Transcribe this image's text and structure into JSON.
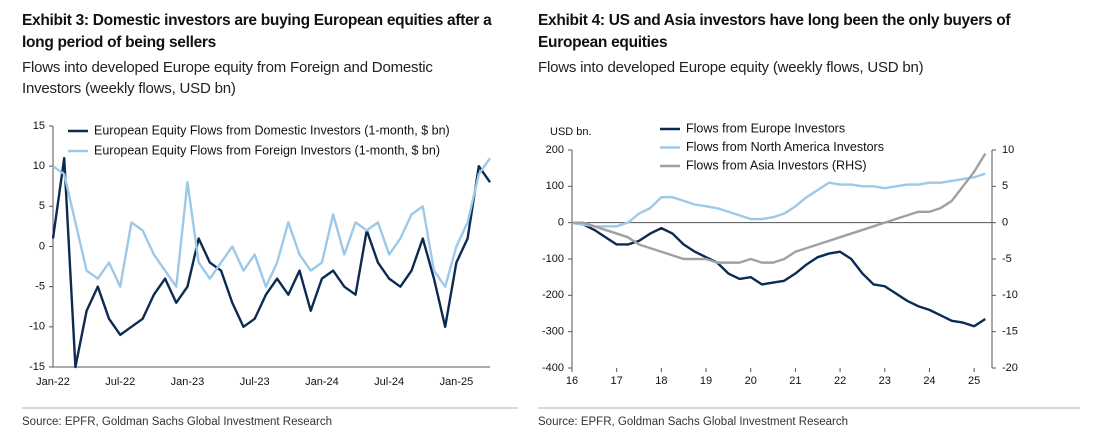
{
  "chart_data": [
    {
      "type": "line",
      "title": "Exhibit 3: Domestic investors are buying European equities after a long period of being sellers",
      "subtitle": "Flows into developed Europe equity from Foreign and Domestic Investors (weekly flows, USD bn)",
      "source": "Source: EPFR, Goldman Sachs Global Investment Research",
      "categories": [
        "Jan-22",
        null,
        null,
        null,
        null,
        null,
        "Jul-22",
        null,
        null,
        null,
        null,
        null,
        "Jan-23",
        null,
        null,
        null,
        null,
        null,
        "Jul-23",
        null,
        null,
        null,
        null,
        null,
        "Jan-24",
        null,
        null,
        null,
        null,
        null,
        "Jul-24",
        null,
        null,
        null,
        null,
        null,
        "Jan-25",
        null,
        null,
        null
      ],
      "series": [
        {
          "name": "European Equity Flows from Domestic Investors (1-month, $ bn)",
          "color": "#0b2b53",
          "values": [
            1,
            11,
            -15,
            -8,
            -5,
            -9,
            -11,
            -10,
            -9,
            -6,
            -4,
            -7,
            -5,
            1,
            -2,
            -3,
            -7,
            -10,
            -9,
            -6,
            -4,
            -6,
            -3,
            -8,
            -4,
            -3,
            -5,
            -6,
            2,
            -2,
            -4,
            -5,
            -3,
            1,
            -4,
            -10,
            -2,
            1,
            10,
            8
          ]
        },
        {
          "name": "European Equity Flows from Foreign Investors (1-month, $ bn)",
          "color": "#9dc9e8",
          "values": [
            10,
            9,
            3,
            -3,
            -4,
            -2,
            -5,
            3,
            2,
            -1,
            -3,
            -5,
            8,
            -2,
            -4,
            -2,
            0,
            -3,
            -1,
            -5,
            -2,
            3,
            -1,
            -3,
            -2,
            4,
            -1,
            3,
            2,
            3,
            -1,
            1,
            4,
            5,
            -3,
            -5,
            0,
            3,
            9,
            11
          ]
        }
      ],
      "ylim": [
        -15,
        15
      ],
      "yticks": [
        -15,
        -10,
        -5,
        0,
        5,
        10,
        15
      ],
      "legend": "top-left"
    },
    {
      "type": "line",
      "title": "Exhibit 4: US and Asia investors have long been the only buyers of European equities",
      "subtitle": "Flows into developed Europe equity (weekly flows, USD bn)",
      "source": "Source: EPFR, Goldman Sachs Global Investment Research",
      "y_label": "USD bn.",
      "x": [
        16,
        16.25,
        16.5,
        16.75,
        17,
        17.25,
        17.5,
        17.75,
        18,
        18.25,
        18.5,
        18.75,
        19,
        19.25,
        19.5,
        19.75,
        20,
        20.25,
        20.5,
        20.75,
        21,
        21.25,
        21.5,
        21.75,
        22,
        22.25,
        22.5,
        22.75,
        23,
        23.25,
        23.5,
        23.75,
        24,
        24.25,
        24.5,
        24.75,
        25,
        25.25
      ],
      "xlim": [
        16,
        25.4
      ],
      "xticks": [
        16,
        17,
        18,
        19,
        20,
        21,
        22,
        23,
        24,
        25
      ],
      "series": [
        {
          "name": "Flows from Europe Investors",
          "color": "#0b2b53",
          "values": [
            0,
            -5,
            -20,
            -40,
            -60,
            -60,
            -50,
            -30,
            -15,
            -30,
            -60,
            -80,
            -95,
            -110,
            -140,
            -155,
            -150,
            -170,
            -165,
            -160,
            -140,
            -115,
            -95,
            -85,
            -80,
            -100,
            -140,
            -170,
            -175,
            -195,
            -215,
            -230,
            -240,
            -255,
            -270,
            -275,
            -285,
            -265
          ]
        },
        {
          "name": "Flows from North America Investors",
          "color": "#9dc9e8",
          "values": [
            0,
            -5,
            -10,
            -10,
            -10,
            0,
            25,
            40,
            70,
            70,
            60,
            50,
            45,
            40,
            30,
            20,
            10,
            10,
            15,
            25,
            45,
            70,
            90,
            110,
            105,
            105,
            100,
            100,
            95,
            100,
            105,
            105,
            110,
            110,
            115,
            120,
            125,
            135
          ]
        },
        {
          "name": "Flows from Asia Investors (RHS)",
          "color": "#a0a0a0",
          "axis": "y2",
          "values": [
            0,
            0,
            -0.5,
            -1,
            -1.5,
            -2,
            -3,
            -3.5,
            -4,
            -4.5,
            -5,
            -5,
            -5,
            -5.5,
            -5.5,
            -5.5,
            -5,
            -5.5,
            -5.5,
            -5,
            -4,
            -3.5,
            -3,
            -2.5,
            -2,
            -1.5,
            -1,
            -0.5,
            0,
            0.5,
            1,
            1.5,
            1.5,
            2,
            3,
            5,
            7,
            9.5
          ]
        }
      ],
      "ylim": [
        -400,
        200
      ],
      "yticks": [
        -400,
        -300,
        -200,
        -100,
        0,
        100,
        200
      ],
      "y2lim": [
        -20,
        10
      ],
      "y2ticks": [
        -20,
        -15,
        -10,
        -5,
        0,
        5,
        10
      ],
      "legend": "top-left"
    }
  ]
}
